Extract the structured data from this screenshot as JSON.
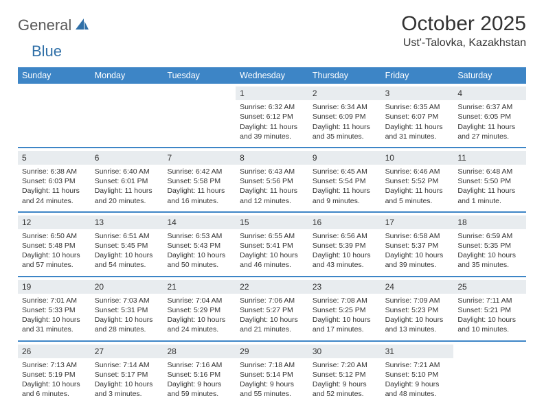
{
  "brand": {
    "name1": "General",
    "name2": "Blue"
  },
  "title": "October 2025",
  "location": "Ust'-Talovka, Kazakhstan",
  "colors": {
    "header_bg": "#3d85c6",
    "header_text": "#ffffff",
    "band_bg": "#e8ecef",
    "divider": "#3d85c6",
    "text": "#333333",
    "logo_gray": "#5a5a5a",
    "logo_blue": "#2f6fa7",
    "background": "#ffffff"
  },
  "typography": {
    "title_fontsize": 30,
    "location_fontsize": 16,
    "dayhead_fontsize": 12.5,
    "daynum_fontsize": 12,
    "body_fontsize": 10.5,
    "logo_fontsize": 22
  },
  "layout": {
    "columns": 7,
    "rows": 5,
    "cell_min_height": 84
  },
  "day_names": [
    "Sunday",
    "Monday",
    "Tuesday",
    "Wednesday",
    "Thursday",
    "Friday",
    "Saturday"
  ],
  "weeks": [
    [
      {
        "n": "",
        "l1": "",
        "l2": "",
        "l3": "",
        "l4": ""
      },
      {
        "n": "",
        "l1": "",
        "l2": "",
        "l3": "",
        "l4": ""
      },
      {
        "n": "",
        "l1": "",
        "l2": "",
        "l3": "",
        "l4": ""
      },
      {
        "n": "1",
        "l1": "Sunrise: 6:32 AM",
        "l2": "Sunset: 6:12 PM",
        "l3": "Daylight: 11 hours",
        "l4": "and 39 minutes."
      },
      {
        "n": "2",
        "l1": "Sunrise: 6:34 AM",
        "l2": "Sunset: 6:09 PM",
        "l3": "Daylight: 11 hours",
        "l4": "and 35 minutes."
      },
      {
        "n": "3",
        "l1": "Sunrise: 6:35 AM",
        "l2": "Sunset: 6:07 PM",
        "l3": "Daylight: 11 hours",
        "l4": "and 31 minutes."
      },
      {
        "n": "4",
        "l1": "Sunrise: 6:37 AM",
        "l2": "Sunset: 6:05 PM",
        "l3": "Daylight: 11 hours",
        "l4": "and 27 minutes."
      }
    ],
    [
      {
        "n": "5",
        "l1": "Sunrise: 6:38 AM",
        "l2": "Sunset: 6:03 PM",
        "l3": "Daylight: 11 hours",
        "l4": "and 24 minutes."
      },
      {
        "n": "6",
        "l1": "Sunrise: 6:40 AM",
        "l2": "Sunset: 6:01 PM",
        "l3": "Daylight: 11 hours",
        "l4": "and 20 minutes."
      },
      {
        "n": "7",
        "l1": "Sunrise: 6:42 AM",
        "l2": "Sunset: 5:58 PM",
        "l3": "Daylight: 11 hours",
        "l4": "and 16 minutes."
      },
      {
        "n": "8",
        "l1": "Sunrise: 6:43 AM",
        "l2": "Sunset: 5:56 PM",
        "l3": "Daylight: 11 hours",
        "l4": "and 12 minutes."
      },
      {
        "n": "9",
        "l1": "Sunrise: 6:45 AM",
        "l2": "Sunset: 5:54 PM",
        "l3": "Daylight: 11 hours",
        "l4": "and 9 minutes."
      },
      {
        "n": "10",
        "l1": "Sunrise: 6:46 AM",
        "l2": "Sunset: 5:52 PM",
        "l3": "Daylight: 11 hours",
        "l4": "and 5 minutes."
      },
      {
        "n": "11",
        "l1": "Sunrise: 6:48 AM",
        "l2": "Sunset: 5:50 PM",
        "l3": "Daylight: 11 hours",
        "l4": "and 1 minute."
      }
    ],
    [
      {
        "n": "12",
        "l1": "Sunrise: 6:50 AM",
        "l2": "Sunset: 5:48 PM",
        "l3": "Daylight: 10 hours",
        "l4": "and 57 minutes."
      },
      {
        "n": "13",
        "l1": "Sunrise: 6:51 AM",
        "l2": "Sunset: 5:45 PM",
        "l3": "Daylight: 10 hours",
        "l4": "and 54 minutes."
      },
      {
        "n": "14",
        "l1": "Sunrise: 6:53 AM",
        "l2": "Sunset: 5:43 PM",
        "l3": "Daylight: 10 hours",
        "l4": "and 50 minutes."
      },
      {
        "n": "15",
        "l1": "Sunrise: 6:55 AM",
        "l2": "Sunset: 5:41 PM",
        "l3": "Daylight: 10 hours",
        "l4": "and 46 minutes."
      },
      {
        "n": "16",
        "l1": "Sunrise: 6:56 AM",
        "l2": "Sunset: 5:39 PM",
        "l3": "Daylight: 10 hours",
        "l4": "and 43 minutes."
      },
      {
        "n": "17",
        "l1": "Sunrise: 6:58 AM",
        "l2": "Sunset: 5:37 PM",
        "l3": "Daylight: 10 hours",
        "l4": "and 39 minutes."
      },
      {
        "n": "18",
        "l1": "Sunrise: 6:59 AM",
        "l2": "Sunset: 5:35 PM",
        "l3": "Daylight: 10 hours",
        "l4": "and 35 minutes."
      }
    ],
    [
      {
        "n": "19",
        "l1": "Sunrise: 7:01 AM",
        "l2": "Sunset: 5:33 PM",
        "l3": "Daylight: 10 hours",
        "l4": "and 31 minutes."
      },
      {
        "n": "20",
        "l1": "Sunrise: 7:03 AM",
        "l2": "Sunset: 5:31 PM",
        "l3": "Daylight: 10 hours",
        "l4": "and 28 minutes."
      },
      {
        "n": "21",
        "l1": "Sunrise: 7:04 AM",
        "l2": "Sunset: 5:29 PM",
        "l3": "Daylight: 10 hours",
        "l4": "and 24 minutes."
      },
      {
        "n": "22",
        "l1": "Sunrise: 7:06 AM",
        "l2": "Sunset: 5:27 PM",
        "l3": "Daylight: 10 hours",
        "l4": "and 21 minutes."
      },
      {
        "n": "23",
        "l1": "Sunrise: 7:08 AM",
        "l2": "Sunset: 5:25 PM",
        "l3": "Daylight: 10 hours",
        "l4": "and 17 minutes."
      },
      {
        "n": "24",
        "l1": "Sunrise: 7:09 AM",
        "l2": "Sunset: 5:23 PM",
        "l3": "Daylight: 10 hours",
        "l4": "and 13 minutes."
      },
      {
        "n": "25",
        "l1": "Sunrise: 7:11 AM",
        "l2": "Sunset: 5:21 PM",
        "l3": "Daylight: 10 hours",
        "l4": "and 10 minutes."
      }
    ],
    [
      {
        "n": "26",
        "l1": "Sunrise: 7:13 AM",
        "l2": "Sunset: 5:19 PM",
        "l3": "Daylight: 10 hours",
        "l4": "and 6 minutes."
      },
      {
        "n": "27",
        "l1": "Sunrise: 7:14 AM",
        "l2": "Sunset: 5:17 PM",
        "l3": "Daylight: 10 hours",
        "l4": "and 3 minutes."
      },
      {
        "n": "28",
        "l1": "Sunrise: 7:16 AM",
        "l2": "Sunset: 5:16 PM",
        "l3": "Daylight: 9 hours",
        "l4": "and 59 minutes."
      },
      {
        "n": "29",
        "l1": "Sunrise: 7:18 AM",
        "l2": "Sunset: 5:14 PM",
        "l3": "Daylight: 9 hours",
        "l4": "and 55 minutes."
      },
      {
        "n": "30",
        "l1": "Sunrise: 7:20 AM",
        "l2": "Sunset: 5:12 PM",
        "l3": "Daylight: 9 hours",
        "l4": "and 52 minutes."
      },
      {
        "n": "31",
        "l1": "Sunrise: 7:21 AM",
        "l2": "Sunset: 5:10 PM",
        "l3": "Daylight: 9 hours",
        "l4": "and 48 minutes."
      },
      {
        "n": "",
        "l1": "",
        "l2": "",
        "l3": "",
        "l4": ""
      }
    ]
  ]
}
